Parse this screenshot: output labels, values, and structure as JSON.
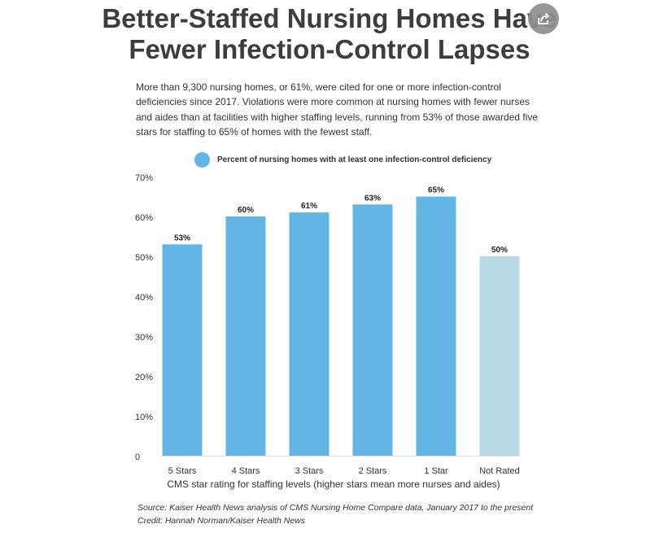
{
  "title_line1": "Better-Staffed Nursing Homes Have",
  "title_line2": "Fewer Infection-Control Lapses",
  "subtitle": "More than 9,300 nursing homes, or 61%, were cited for one or more infection-control deficiencies since 2017. Violations were more common at nursing homes with fewer nurses and aides than at facilities with higher staffing levels, running from 53% of those awarded five stars for staffing to 65% of homes with the fewest staff.",
  "share_icon": "share-icon",
  "source_line1": "Source: Kaiser Health News analysis of CMS Nursing Home Compare data, January 2017 to the present",
  "source_line2": "Credit: Hannah Norman/Kaiser Health News",
  "chart_data": {
    "type": "bar",
    "categories": [
      "5 Stars",
      "4 Stars",
      "3 Stars",
      "2 Stars",
      "1 Star",
      "Not Rated"
    ],
    "series": [
      {
        "name": "Percent of nursing homes with at  least one infection-control deficiency",
        "values": [
          53,
          60,
          61,
          63,
          65,
          50
        ],
        "data_labels": [
          "53%",
          "60%",
          "61%",
          "63%",
          "65%",
          "50%"
        ]
      }
    ],
    "bar_colors": [
      "#62b5e5",
      "#62b5e5",
      "#62b5e5",
      "#62b5e5",
      "#62b5e5",
      "#b8d8e6"
    ],
    "xlabel": "CMS star rating for staffing levels (higher stars mean more nurses and aides)",
    "ylabel": "",
    "ylim": [
      0,
      70
    ],
    "yticks": [
      0,
      10,
      20,
      30,
      40,
      50,
      60,
      70
    ],
    "ytick_labels": [
      "0",
      "10%",
      "20%",
      "30%",
      "40%",
      "50%",
      "60%",
      "70%"
    ],
    "grid": false,
    "legend_position": "top"
  }
}
